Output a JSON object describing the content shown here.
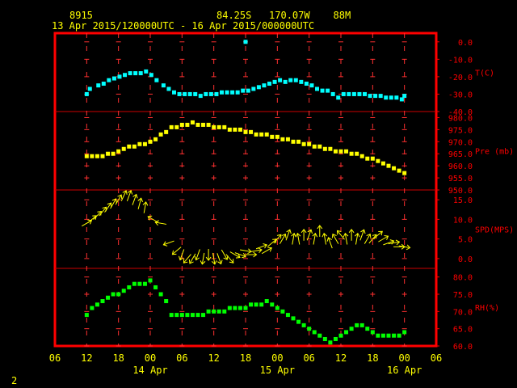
{
  "header": {
    "station_id": "8915",
    "location": "84.25S   170.07W    88M",
    "period": "13 Apr 2015/120000UTC - 16 Apr 2015/000000UTC"
  },
  "page_number": "2",
  "colors": {
    "frame": "#ff0000",
    "panel_divider": "#cc0000",
    "grid": "#ff3030",
    "temperature": "#00ffff",
    "pressure": "#ffff00",
    "wind": "#ffff00",
    "humidity": "#00ff00",
    "label_text": "#ff0000",
    "axis_text": "#ffff00"
  },
  "chart_data": {
    "type": "scatter",
    "x_axis": {
      "unit": "hours",
      "range": [
        -6,
        66
      ],
      "ticks": [
        {
          "hour": -6,
          "label": "06"
        },
        {
          "hour": 0,
          "label": "12"
        },
        {
          "hour": 6,
          "label": "18"
        },
        {
          "hour": 12,
          "label": "00"
        },
        {
          "hour": 18,
          "label": "06"
        },
        {
          "hour": 24,
          "label": "12"
        },
        {
          "hour": 30,
          "label": "18"
        },
        {
          "hour": 36,
          "label": "00"
        },
        {
          "hour": 42,
          "label": "06"
        },
        {
          "hour": 48,
          "label": "12"
        },
        {
          "hour": 54,
          "label": "18"
        },
        {
          "hour": 60,
          "label": "00"
        },
        {
          "hour": 66,
          "label": "06"
        }
      ],
      "date_labels": [
        {
          "hour": 12,
          "label": "14 Apr"
        },
        {
          "hour": 36,
          "label": "15 Apr"
        },
        {
          "hour": 60,
          "label": "16 Apr"
        }
      ],
      "grid": true
    },
    "panels": [
      {
        "key": "temperature",
        "label": "T(C)",
        "ylim": [
          -40,
          5
        ],
        "ticks": [
          "0.0",
          "-10.0",
          "-20.0",
          "-30.0",
          "-40.0"
        ],
        "tick_values": [
          0,
          -10,
          -20,
          -30,
          -40
        ],
        "marker": "square",
        "points": [
          [
            0.0,
            -30
          ],
          [
            0.6,
            -27
          ],
          [
            2.2,
            -25
          ],
          [
            3.2,
            -24
          ],
          [
            4.2,
            -22
          ],
          [
            5.2,
            -21
          ],
          [
            6.2,
            -20
          ],
          [
            7.2,
            -19
          ],
          [
            8.2,
            -18
          ],
          [
            9.2,
            -18
          ],
          [
            10.2,
            -18
          ],
          [
            11.2,
            -17
          ],
          [
            12.2,
            -19
          ],
          [
            13.2,
            -22
          ],
          [
            14.5,
            -25
          ],
          [
            15.5,
            -27
          ],
          [
            16.5,
            -29
          ],
          [
            17.5,
            -30
          ],
          [
            18.5,
            -30
          ],
          [
            19.5,
            -30
          ],
          [
            20.5,
            -30
          ],
          [
            21.5,
            -31
          ],
          [
            22.5,
            -30
          ],
          [
            23.5,
            -30
          ],
          [
            24.5,
            -30
          ],
          [
            25.5,
            -29
          ],
          [
            26.5,
            -29
          ],
          [
            27.5,
            -29
          ],
          [
            28.5,
            -29
          ],
          [
            29.5,
            -28
          ],
          [
            30.5,
            -28
          ],
          [
            31.5,
            -27
          ],
          [
            32.5,
            -26
          ],
          [
            33.5,
            -25
          ],
          [
            34.5,
            -24
          ],
          [
            35.5,
            -23
          ],
          [
            36.5,
            -22
          ],
          [
            37.5,
            -23
          ],
          [
            38.5,
            -22
          ],
          [
            39.5,
            -22
          ],
          [
            40.5,
            -23
          ],
          [
            41.5,
            -24
          ],
          [
            42.5,
            -25
          ],
          [
            43.5,
            -27
          ],
          [
            44.5,
            -28
          ],
          [
            45.5,
            -28
          ],
          [
            46.5,
            -30
          ],
          [
            47.5,
            -32
          ],
          [
            48.5,
            -30
          ],
          [
            49.5,
            -30
          ],
          [
            50.5,
            -30
          ],
          [
            51.5,
            -30
          ],
          [
            52.5,
            -30
          ],
          [
            53.5,
            -31
          ],
          [
            54.5,
            -31
          ],
          [
            55.5,
            -31
          ],
          [
            56.5,
            -32
          ],
          [
            57.5,
            -32
          ],
          [
            58.5,
            -32
          ],
          [
            59.5,
            -33
          ],
          [
            60.0,
            -31
          ],
          [
            30.0,
            0
          ]
        ]
      },
      {
        "key": "pressure",
        "label": "Pre (mb)",
        "ylim": [
          950,
          982.5
        ],
        "ticks": [
          "980.0",
          "975.0",
          "970.0",
          "965.0",
          "960.0",
          "955.0",
          "950.0"
        ],
        "tick_values": [
          980,
          975,
          970,
          965,
          960,
          955,
          950
        ],
        "marker": "square",
        "points": [
          [
            0.0,
            964
          ],
          [
            1.0,
            964
          ],
          [
            2.0,
            964
          ],
          [
            3.0,
            964
          ],
          [
            4.0,
            965
          ],
          [
            5.0,
            965
          ],
          [
            6.0,
            966
          ],
          [
            7.0,
            967
          ],
          [
            8.0,
            968
          ],
          [
            9.0,
            968
          ],
          [
            10.0,
            969
          ],
          [
            11.0,
            969
          ],
          [
            12.0,
            970
          ],
          [
            13.0,
            971
          ],
          [
            14.0,
            973
          ],
          [
            15.0,
            974
          ],
          [
            16.0,
            976
          ],
          [
            17.0,
            976
          ],
          [
            18.0,
            977
          ],
          [
            19.0,
            977
          ],
          [
            20.0,
            978
          ],
          [
            21.0,
            977
          ],
          [
            22.0,
            977
          ],
          [
            23.0,
            977
          ],
          [
            24.0,
            976
          ],
          [
            25.0,
            976
          ],
          [
            26.0,
            976
          ],
          [
            27.0,
            975
          ],
          [
            28.0,
            975
          ],
          [
            29.0,
            975
          ],
          [
            30.0,
            974
          ],
          [
            31.0,
            974
          ],
          [
            32.0,
            973
          ],
          [
            33.0,
            973
          ],
          [
            34.0,
            973
          ],
          [
            35.0,
            972
          ],
          [
            36.0,
            972
          ],
          [
            37.0,
            971
          ],
          [
            38.0,
            971
          ],
          [
            39.0,
            970
          ],
          [
            40.0,
            970
          ],
          [
            41.0,
            969
          ],
          [
            42.0,
            969
          ],
          [
            43.0,
            968
          ],
          [
            44.0,
            968
          ],
          [
            45.0,
            967
          ],
          [
            46.0,
            967
          ],
          [
            47.0,
            966
          ],
          [
            48.0,
            966
          ],
          [
            49.0,
            966
          ],
          [
            50.0,
            965
          ],
          [
            51.0,
            965
          ],
          [
            52.0,
            964
          ],
          [
            53.0,
            963
          ],
          [
            54.0,
            963
          ],
          [
            55.0,
            962
          ],
          [
            56.0,
            961
          ],
          [
            57.0,
            960
          ],
          [
            58.0,
            959
          ],
          [
            59.0,
            958
          ],
          [
            60.0,
            957
          ]
        ]
      },
      {
        "key": "wind",
        "label": "SPD(MPS)",
        "ylim": [
          -2.5,
          17.5
        ],
        "ticks": [
          "15.0",
          "10.0",
          "5.0",
          "0.0"
        ],
        "tick_values": [
          15,
          10,
          5,
          0
        ],
        "marker": "arrow",
        "points": [
          [
            0.0,
            9,
            60
          ],
          [
            1.0,
            10,
            50
          ],
          [
            2.0,
            11,
            45
          ],
          [
            3.0,
            12,
            40
          ],
          [
            4.0,
            13,
            35
          ],
          [
            5.0,
            14,
            30
          ],
          [
            6.0,
            15,
            30
          ],
          [
            7.0,
            16,
            25
          ],
          [
            8.0,
            16,
            20
          ],
          [
            9.0,
            15,
            20
          ],
          [
            10.0,
            14,
            15
          ],
          [
            11.0,
            13,
            10
          ],
          [
            12.5,
            10,
            300
          ],
          [
            14.0,
            9,
            280
          ],
          [
            15.5,
            4,
            250
          ],
          [
            17.0,
            2,
            230
          ],
          [
            18.0,
            1,
            200
          ],
          [
            19.0,
            0,
            220
          ],
          [
            20.0,
            0,
            210
          ],
          [
            21.0,
            1,
            200
          ],
          [
            22.0,
            0,
            190
          ],
          [
            23.0,
            1,
            180
          ],
          [
            24.0,
            0,
            170
          ],
          [
            25.0,
            0,
            160
          ],
          [
            26.0,
            1,
            150
          ],
          [
            27.0,
            0,
            140
          ],
          [
            28.0,
            1,
            120
          ],
          [
            29.0,
            1,
            110
          ],
          [
            30.0,
            2,
            100
          ],
          [
            31.0,
            1,
            90
          ],
          [
            32.0,
            2,
            80
          ],
          [
            33.0,
            3,
            70
          ],
          [
            34.0,
            2,
            60
          ],
          [
            35.0,
            4,
            50
          ],
          [
            36.0,
            5,
            40
          ],
          [
            37.0,
            5,
            30
          ],
          [
            38.0,
            6,
            20
          ],
          [
            39.0,
            5,
            10
          ],
          [
            40.0,
            5,
            350
          ],
          [
            41.0,
            6,
            0
          ],
          [
            42.0,
            6,
            20
          ],
          [
            43.0,
            5,
            10
          ],
          [
            44.0,
            7,
            0
          ],
          [
            45.0,
            5,
            350
          ],
          [
            46.0,
            4,
            340
          ],
          [
            47.0,
            5,
            330
          ],
          [
            48.0,
            6,
            320
          ],
          [
            49.0,
            5,
            350
          ],
          [
            50.0,
            6,
            0
          ],
          [
            51.0,
            5,
            10
          ],
          [
            52.0,
            6,
            20
          ],
          [
            53.0,
            5,
            30
          ],
          [
            54.0,
            5,
            40
          ],
          [
            55.0,
            6,
            50
          ],
          [
            56.0,
            5,
            60
          ],
          [
            57.0,
            4,
            70
          ],
          [
            58.0,
            4,
            80
          ],
          [
            59.0,
            3,
            90
          ],
          [
            60.0,
            3,
            100
          ]
        ]
      },
      {
        "key": "humidity",
        "label": "RH(%)",
        "ylim": [
          60,
          82.5
        ],
        "ticks": [
          "80.0",
          "75.0",
          "70.0",
          "65.0",
          "60.0"
        ],
        "tick_values": [
          80,
          75,
          70,
          65,
          60
        ],
        "marker": "square",
        "points": [
          [
            0.0,
            69
          ],
          [
            1.0,
            71
          ],
          [
            2.0,
            72
          ],
          [
            3.0,
            73
          ],
          [
            4.0,
            74
          ],
          [
            5.0,
            75
          ],
          [
            6.0,
            75
          ],
          [
            7.0,
            76
          ],
          [
            8.0,
            77
          ],
          [
            9.0,
            78
          ],
          [
            10.0,
            78
          ],
          [
            11.0,
            78
          ],
          [
            12.0,
            79
          ],
          [
            13.0,
            77
          ],
          [
            14.0,
            75
          ],
          [
            15.0,
            73
          ],
          [
            16.0,
            69
          ],
          [
            17.0,
            69
          ],
          [
            18.0,
            69
          ],
          [
            19.0,
            69
          ],
          [
            20.0,
            69
          ],
          [
            21.0,
            69
          ],
          [
            22.0,
            69
          ],
          [
            23.0,
            70
          ],
          [
            24.0,
            70
          ],
          [
            25.0,
            70
          ],
          [
            26.0,
            70
          ],
          [
            27.0,
            71
          ],
          [
            28.0,
            71
          ],
          [
            29.0,
            71
          ],
          [
            30.0,
            71
          ],
          [
            31.0,
            72
          ],
          [
            32.0,
            72
          ],
          [
            33.0,
            72
          ],
          [
            34.0,
            73
          ],
          [
            35.0,
            72
          ],
          [
            36.0,
            71
          ],
          [
            37.0,
            70
          ],
          [
            38.0,
            69
          ],
          [
            39.0,
            68
          ],
          [
            40.0,
            67
          ],
          [
            41.0,
            66
          ],
          [
            42.0,
            65
          ],
          [
            43.0,
            64
          ],
          [
            44.0,
            63
          ],
          [
            45.0,
            62
          ],
          [
            46.0,
            61
          ],
          [
            47.0,
            62
          ],
          [
            48.0,
            63
          ],
          [
            49.0,
            64
          ],
          [
            50.0,
            65
          ],
          [
            51.0,
            66
          ],
          [
            52.0,
            66
          ],
          [
            53.0,
            65
          ],
          [
            54.0,
            64
          ],
          [
            55.0,
            63
          ],
          [
            56.0,
            63
          ],
          [
            57.0,
            63
          ],
          [
            58.0,
            63
          ],
          [
            59.0,
            63
          ],
          [
            60.0,
            64
          ]
        ]
      }
    ]
  }
}
